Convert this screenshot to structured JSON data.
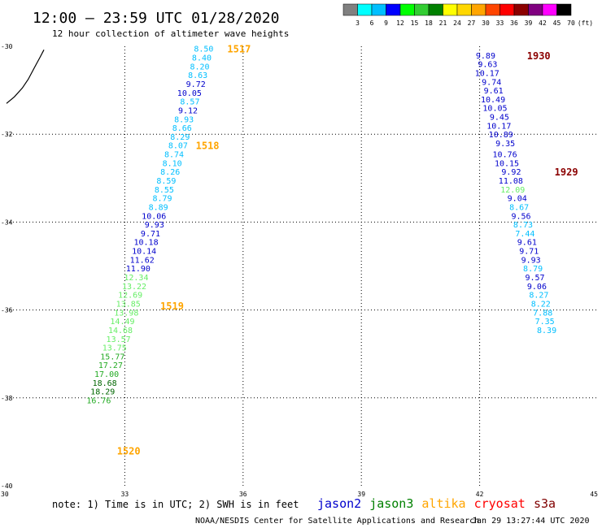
{
  "header": {
    "title": "12:00 – 23:59 UTC 01/28/2020",
    "subtitle": "12 hour collection of altimeter wave heights"
  },
  "color_scale": {
    "labels": [
      "3",
      "6",
      "9",
      "12",
      "15",
      "18",
      "21",
      "24",
      "27",
      "30",
      "33",
      "36",
      "39",
      "42",
      "45",
      "70",
      "(ft)"
    ],
    "colors": [
      "#808080",
      "#00ffff",
      "#00bfff",
      "#0000ff",
      "#00ff00",
      "#32cd32",
      "#008000",
      "#ffff00",
      "#ffd700",
      "#ffa500",
      "#ff4500",
      "#ff0000",
      "#8b0000",
      "#800080",
      "#ff00ff",
      "#000000"
    ]
  },
  "footer": {
    "note": "note: 1) Time is in UTC; 2) SWH is in feet",
    "credit": "NOAA/NESDIS Center for Satellite Applications and Research",
    "timestamp": "Jan 29 13:27:44 UTC 2020"
  },
  "satellites": [
    {
      "name": "jason2",
      "color": "#0000cc"
    },
    {
      "name": "jason3",
      "color": "#008000"
    },
    {
      "name": "altika",
      "color": "#ffa500"
    },
    {
      "name": "cryosat",
      "color": "#ff0000"
    },
    {
      "name": "s3a",
      "color": "#800000"
    }
  ],
  "chart_data": {
    "type": "scatter",
    "title": "12:00 – 23:59 UTC 01/28/2020",
    "subtitle": "12 hour collection of altimeter wave heights",
    "x_ticks": [
      30,
      33,
      36,
      39,
      42,
      45
    ],
    "y_ticks": [
      -30,
      -32,
      -34,
      -36,
      -38,
      -40
    ],
    "x_tick_labels": [
      "30",
      "33",
      "36",
      "39",
      "42",
      "45"
    ],
    "y_tick_labels": [
      "-30",
      "-32",
      "-34",
      "-36",
      "-38",
      "-40"
    ],
    "xlim": [
      30,
      45
    ],
    "ylim": [
      -40,
      -30
    ],
    "grid": true,
    "coastline": [
      [
        30.0,
        -31.3
      ],
      [
        30.2,
        -31.15
      ],
      [
        30.4,
        -30.95
      ],
      [
        30.55,
        -30.75
      ],
      [
        30.7,
        -30.5
      ],
      [
        30.85,
        -30.25
      ],
      [
        30.95,
        -30.08
      ]
    ],
    "pass_labels": [
      {
        "label": "1517",
        "x": 35.6,
        "y": -30.05,
        "color": "#ffa500"
      },
      {
        "label": "1518",
        "x": 34.8,
        "y": -32.25,
        "color": "#ffa500"
      },
      {
        "label": "1519",
        "x": 33.9,
        "y": -35.9,
        "color": "#ffa500"
      },
      {
        "label": "1520",
        "x": 32.8,
        "y": -39.2,
        "color": "#ffa500"
      },
      {
        "label": "1930",
        "x": 43.2,
        "y": -30.2,
        "color": "#8b0000"
      },
      {
        "label": "1929",
        "x": 43.9,
        "y": -32.85,
        "color": "#8b0000"
      }
    ],
    "series": [
      {
        "name": "altika",
        "points": [
          {
            "x": 35.25,
            "y": -30.05,
            "v": "8.50",
            "c": "#00bfff"
          },
          {
            "x": 35.2,
            "y": -30.25,
            "v": "8.40",
            "c": "#00bfff"
          },
          {
            "x": 35.15,
            "y": -30.45,
            "v": "8.20",
            "c": "#00bfff"
          },
          {
            "x": 35.1,
            "y": -30.65,
            "v": "8.63",
            "c": "#00bfff"
          },
          {
            "x": 35.05,
            "y": -30.85,
            "v": "9.72",
            "c": "#0000cc"
          },
          {
            "x": 34.95,
            "y": -31.05,
            "v": "10.05",
            "c": "#0000cc"
          },
          {
            "x": 34.9,
            "y": -31.25,
            "v": "8.57",
            "c": "#00bfff"
          },
          {
            "x": 34.85,
            "y": -31.45,
            "v": "9.12",
            "c": "#0000cc"
          },
          {
            "x": 34.75,
            "y": -31.65,
            "v": "8.93",
            "c": "#00bfff"
          },
          {
            "x": 34.7,
            "y": -31.85,
            "v": "8.66",
            "c": "#00bfff"
          },
          {
            "x": 34.65,
            "y": -32.05,
            "v": "8.29",
            "c": "#00bfff"
          },
          {
            "x": 34.6,
            "y": -32.25,
            "v": "8.07",
            "c": "#00bfff"
          },
          {
            "x": 34.5,
            "y": -32.45,
            "v": "8.74",
            "c": "#00bfff"
          },
          {
            "x": 34.45,
            "y": -32.65,
            "v": "8.10",
            "c": "#00bfff"
          },
          {
            "x": 34.4,
            "y": -32.85,
            "v": "8.26",
            "c": "#00bfff"
          },
          {
            "x": 34.3,
            "y": -33.05,
            "v": "8.59",
            "c": "#00bfff"
          },
          {
            "x": 34.25,
            "y": -33.25,
            "v": "8.55",
            "c": "#00bfff"
          },
          {
            "x": 34.2,
            "y": -33.45,
            "v": "8.79",
            "c": "#00bfff"
          },
          {
            "x": 34.1,
            "y": -33.65,
            "v": "8.89",
            "c": "#00bfff"
          },
          {
            "x": 34.05,
            "y": -33.85,
            "v": "10.06",
            "c": "#0000cc"
          },
          {
            "x": 34.0,
            "y": -34.05,
            "v": "9.93",
            "c": "#0000cc"
          },
          {
            "x": 33.9,
            "y": -34.25,
            "v": "9.71",
            "c": "#0000cc"
          },
          {
            "x": 33.85,
            "y": -34.45,
            "v": "10.18",
            "c": "#0000cc"
          },
          {
            "x": 33.8,
            "y": -34.65,
            "v": "10.14",
            "c": "#0000cc"
          },
          {
            "x": 33.75,
            "y": -34.85,
            "v": "11.62",
            "c": "#0000cc"
          },
          {
            "x": 33.65,
            "y": -35.05,
            "v": "11.90",
            "c": "#0000cc"
          },
          {
            "x": 33.6,
            "y": -35.25,
            "v": "12.34",
            "c": "#66ee66"
          },
          {
            "x": 33.55,
            "y": -35.45,
            "v": "13.22",
            "c": "#66ee66"
          },
          {
            "x": 33.45,
            "y": -35.65,
            "v": "12.69",
            "c": "#66ee66"
          },
          {
            "x": 33.4,
            "y": -35.85,
            "v": "13.85",
            "c": "#66ee66"
          },
          {
            "x": 33.35,
            "y": -36.05,
            "v": "13.98",
            "c": "#66ee66"
          },
          {
            "x": 33.25,
            "y": -36.25,
            "v": "14.49",
            "c": "#66ee66"
          },
          {
            "x": 33.2,
            "y": -36.45,
            "v": "14.68",
            "c": "#66ee66"
          },
          {
            "x": 33.15,
            "y": -36.65,
            "v": "13.57",
            "c": "#66ee66"
          },
          {
            "x": 33.05,
            "y": -36.85,
            "v": "13.75",
            "c": "#66ee66"
          },
          {
            "x": 33.0,
            "y": -37.05,
            "v": "15.77",
            "c": "#22aa22"
          },
          {
            "x": 32.95,
            "y": -37.25,
            "v": "17.27",
            "c": "#22aa22"
          },
          {
            "x": 32.85,
            "y": -37.45,
            "v": "17.00",
            "c": "#22aa22"
          },
          {
            "x": 32.8,
            "y": -37.65,
            "v": "18.68",
            "c": "#006600"
          },
          {
            "x": 32.75,
            "y": -37.85,
            "v": "18.29",
            "c": "#006600"
          },
          {
            "x": 32.65,
            "y": -38.05,
            "v": "16.76",
            "c": "#22aa22"
          }
        ]
      },
      {
        "name": "s3a",
        "points": [
          {
            "x": 42.4,
            "y": -30.2,
            "v": "9.89",
            "c": "#0000cc"
          },
          {
            "x": 42.45,
            "y": -30.4,
            "v": "9.63",
            "c": "#0000cc"
          },
          {
            "x": 42.5,
            "y": -30.6,
            "v": "10.17",
            "c": "#0000cc"
          },
          {
            "x": 42.55,
            "y": -30.8,
            "v": "9.74",
            "c": "#0000cc"
          },
          {
            "x": 42.6,
            "y": -31.0,
            "v": "9.61",
            "c": "#0000cc"
          },
          {
            "x": 42.65,
            "y": -31.2,
            "v": "10.49",
            "c": "#0000cc"
          },
          {
            "x": 42.7,
            "y": -31.4,
            "v": "10.05",
            "c": "#0000cc"
          },
          {
            "x": 42.75,
            "y": -31.6,
            "v": "9.45",
            "c": "#0000cc"
          },
          {
            "x": 42.8,
            "y": -31.8,
            "v": "10.17",
            "c": "#0000cc"
          },
          {
            "x": 42.85,
            "y": -32.0,
            "v": "10.89",
            "c": "#0000cc"
          },
          {
            "x": 42.9,
            "y": -32.2,
            "v": "9.35",
            "c": "#0000cc"
          },
          {
            "x": 42.95,
            "y": -32.45,
            "v": "10.76",
            "c": "#0000cc"
          },
          {
            "x": 43.0,
            "y": -32.65,
            "v": "10.15",
            "c": "#0000cc"
          },
          {
            "x": 43.05,
            "y": -32.85,
            "v": "9.92",
            "c": "#0000cc"
          },
          {
            "x": 43.1,
            "y": -33.05,
            "v": "11.08",
            "c": "#0000cc"
          },
          {
            "x": 43.15,
            "y": -33.25,
            "v": "12.09",
            "c": "#66ee66"
          },
          {
            "x": 43.2,
            "y": -33.45,
            "v": "9.04",
            "c": "#0000cc"
          },
          {
            "x": 43.25,
            "y": -33.65,
            "v": "8.67",
            "c": "#00bfff"
          },
          {
            "x": 43.3,
            "y": -33.85,
            "v": "9.56",
            "c": "#0000cc"
          },
          {
            "x": 43.35,
            "y": -34.05,
            "v": "8.73",
            "c": "#00bfff"
          },
          {
            "x": 43.4,
            "y": -34.25,
            "v": "7.44",
            "c": "#00bfff"
          },
          {
            "x": 43.45,
            "y": -34.45,
            "v": "9.61",
            "c": "#0000cc"
          },
          {
            "x": 43.5,
            "y": -34.65,
            "v": "9.71",
            "c": "#0000cc"
          },
          {
            "x": 43.55,
            "y": -34.85,
            "v": "9.93",
            "c": "#0000cc"
          },
          {
            "x": 43.6,
            "y": -35.05,
            "v": "8.79",
            "c": "#00bfff"
          },
          {
            "x": 43.65,
            "y": -35.25,
            "v": "9.57",
            "c": "#0000cc"
          },
          {
            "x": 43.7,
            "y": -35.45,
            "v": "9.06",
            "c": "#0000cc"
          },
          {
            "x": 43.75,
            "y": -35.65,
            "v": "8.27",
            "c": "#00bfff"
          },
          {
            "x": 43.8,
            "y": -35.85,
            "v": "8.22",
            "c": "#00bfff"
          },
          {
            "x": 43.85,
            "y": -36.05,
            "v": "7.88",
            "c": "#00bfff"
          },
          {
            "x": 43.9,
            "y": -36.25,
            "v": "7.35",
            "c": "#00bfff"
          },
          {
            "x": 43.95,
            "y": -36.45,
            "v": "8.39",
            "c": "#00bfff"
          }
        ]
      }
    ]
  }
}
